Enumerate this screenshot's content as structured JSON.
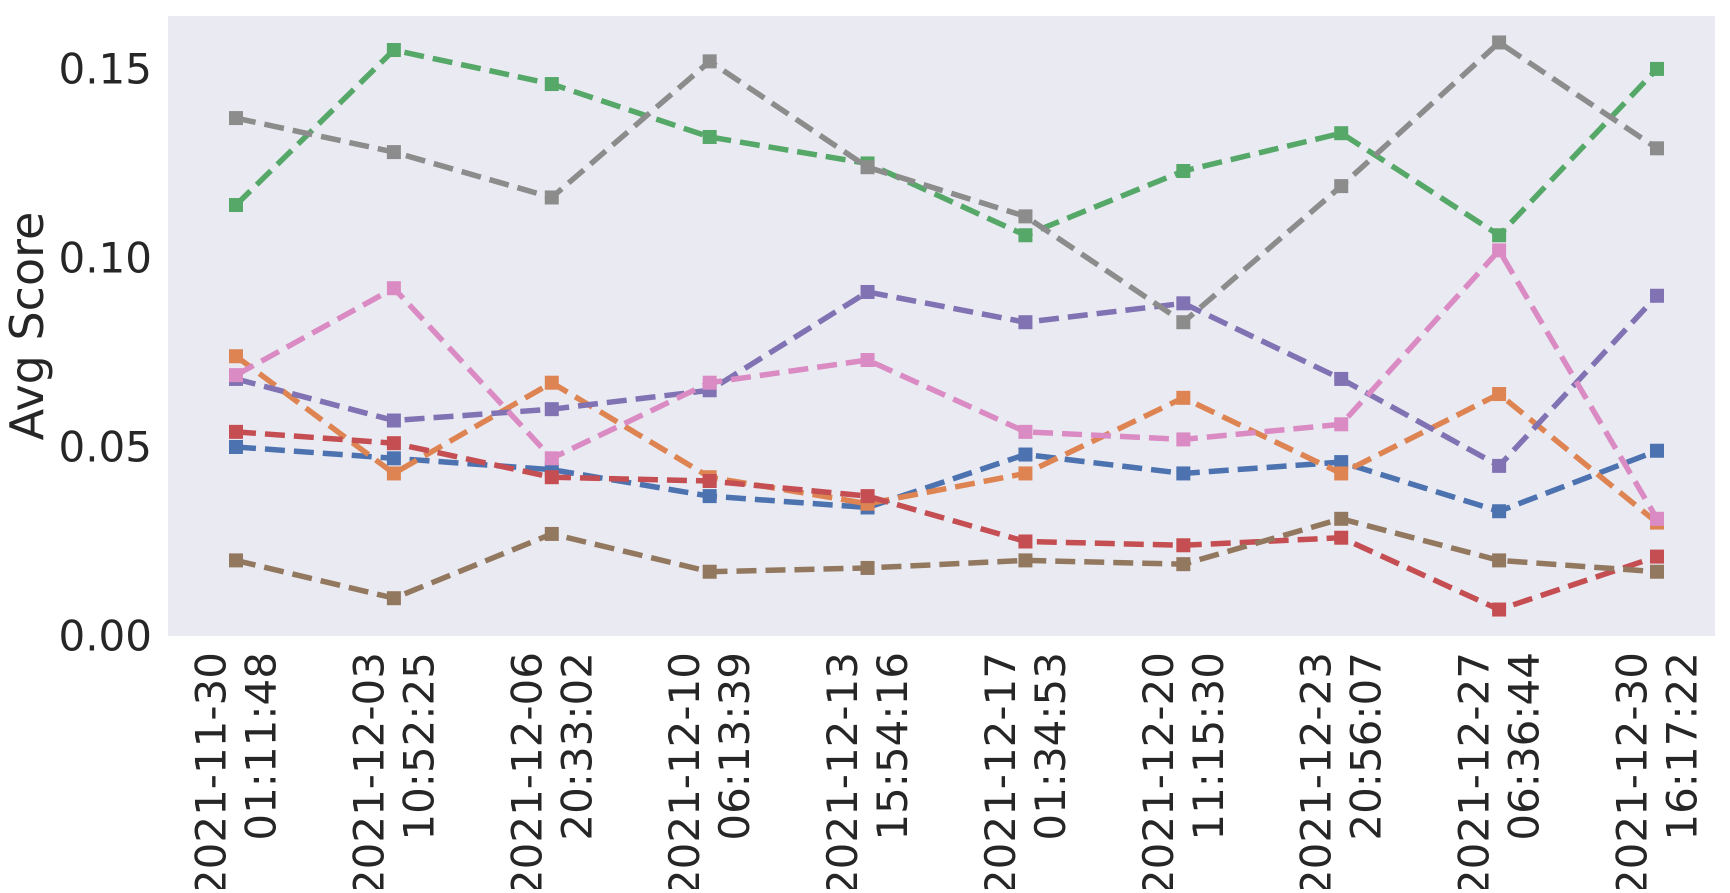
{
  "chart_data": {
    "type": "line",
    "title": "",
    "xlabel": "",
    "ylabel": "Avg Score",
    "ylim": [
      0.0,
      0.164
    ],
    "yticks": [
      "0.00",
      "0.05",
      "0.10",
      "0.15"
    ],
    "ytick_values": [
      0.0,
      0.05,
      0.1,
      0.15
    ],
    "grid": false,
    "legend": "none",
    "background_color": "#EAEAF2",
    "line_style": "dashed",
    "marker": "square",
    "x": [
      "2021-11-30 01:11:48",
      "2021-12-03 10:52:25",
      "2021-12-06 20:33:02",
      "2021-12-10 06:13:39",
      "2021-12-13 15:54:16",
      "2021-12-17 01:34:53",
      "2021-12-20 11:15:30",
      "2021-12-23 20:56:07",
      "2021-12-27 06:36:44",
      "2021-12-30 16:17:22"
    ],
    "xtick_labels": [
      [
        "2021-11-30",
        "01:11:48"
      ],
      [
        "2021-12-03",
        "10:52:25"
      ],
      [
        "2021-12-06",
        "20:33:02"
      ],
      [
        "2021-12-10",
        "06:13:39"
      ],
      [
        "2021-12-13",
        "15:54:16"
      ],
      [
        "2021-12-17",
        "01:34:53"
      ],
      [
        "2021-12-20",
        "11:15:30"
      ],
      [
        "2021-12-23",
        "20:56:07"
      ],
      [
        "2021-12-27",
        "06:36:44"
      ],
      [
        "2021-12-30",
        "16:17:22"
      ]
    ],
    "series": [
      {
        "color": "#4C72B0",
        "values": [
          0.05,
          0.047,
          0.044,
          0.037,
          0.034,
          0.048,
          0.043,
          0.046,
          0.033,
          0.049
        ]
      },
      {
        "color": "#DD8452",
        "values": [
          0.074,
          0.043,
          0.067,
          0.042,
          0.035,
          0.043,
          0.063,
          0.043,
          0.064,
          0.03
        ]
      },
      {
        "color": "#55A868",
        "values": [
          0.114,
          0.155,
          0.146,
          0.132,
          0.125,
          0.106,
          0.123,
          0.133,
          0.106,
          0.15
        ]
      },
      {
        "color": "#C44E52",
        "values": [
          0.054,
          0.051,
          0.042,
          0.041,
          0.037,
          0.025,
          0.024,
          0.026,
          0.007,
          0.021
        ]
      },
      {
        "color": "#8172B3",
        "values": [
          0.068,
          0.057,
          0.06,
          0.065,
          0.091,
          0.083,
          0.088,
          0.068,
          0.045,
          0.09
        ]
      },
      {
        "color": "#937860",
        "values": [
          0.02,
          0.01,
          0.027,
          0.017,
          0.018,
          0.02,
          0.019,
          0.031,
          0.02,
          0.017
        ]
      },
      {
        "color": "#DA8BC3",
        "values": [
          0.069,
          0.092,
          0.047,
          0.067,
          0.073,
          0.054,
          0.052,
          0.056,
          0.102,
          0.031
        ]
      },
      {
        "color": "#8C8C8C",
        "values": [
          0.137,
          0.128,
          0.116,
          0.152,
          0.124,
          0.111,
          0.083,
          0.119,
          0.157,
          0.129
        ]
      }
    ]
  }
}
